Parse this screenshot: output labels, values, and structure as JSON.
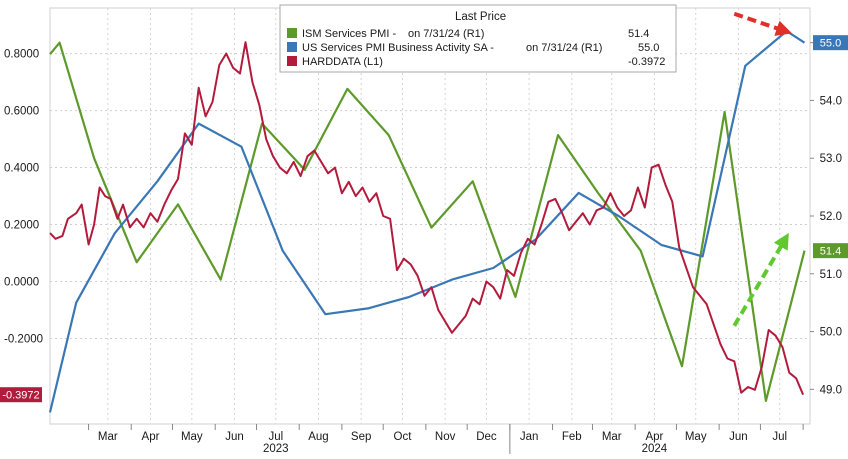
{
  "chart_data": {
    "type": "line",
    "legend": {
      "header": "Last Price",
      "placement": "top-center",
      "entries": [
        {
          "series": "ism",
          "label": "ISM Services PMI -",
          "date_note": "on 7/31/24 (R1)",
          "value": "51.4"
        },
        {
          "series": "us",
          "label": "US Services PMI Business Activity SA -",
          "date_note": "on 7/31/24 (R1)",
          "value": "55.0"
        },
        {
          "series": "hard",
          "label": "HARDDATA (L1)",
          "date_note": "",
          "value": "-0.3972"
        }
      ]
    },
    "x_axis": {
      "months": [
        "Mar",
        "Apr",
        "May",
        "Jun",
        "Jul",
        "Aug",
        "Sep",
        "Oct",
        "Nov",
        "Dec",
        "Jan",
        "Feb",
        "Mar",
        "Apr",
        "May",
        "Jun",
        "Jul"
      ],
      "month_dates": [
        "2023-03-15",
        "2023-04-15",
        "2023-05-15",
        "2023-06-15",
        "2023-07-15",
        "2023-08-15",
        "2023-09-15",
        "2023-10-15",
        "2023-11-15",
        "2023-12-15",
        "2024-01-15",
        "2024-02-15",
        "2024-03-15",
        "2024-04-15",
        "2024-05-15",
        "2024-06-15",
        "2024-07-15"
      ],
      "years": [
        {
          "label": "2023",
          "date": "2023-07-15"
        },
        {
          "label": "2024",
          "date": "2024-04-15"
        }
      ],
      "range": [
        "2023-02-01",
        "2024-08-06"
      ]
    },
    "y_left": {
      "ticks": [
        "0.8000",
        "0.6000",
        "0.4000",
        "0.2000",
        "0.0000",
        "-0.2000"
      ],
      "tick_values": [
        0.8,
        0.6,
        0.4,
        0.2,
        0.0,
        -0.2
      ],
      "range": [
        -0.5,
        0.96
      ]
    },
    "y_right": {
      "ticks": [
        "55.0",
        "54.0",
        "53.0",
        "52.0",
        "51.0",
        "50.0",
        "49.0"
      ],
      "tick_values": [
        55,
        54,
        53,
        52,
        51,
        50,
        49
      ],
      "range": [
        48.4,
        55.6
      ]
    },
    "grid": true,
    "last_value_labels": [
      {
        "series": "us",
        "text": "55.0",
        "value": 55.0,
        "color": "#3a77b6"
      },
      {
        "series": "ism",
        "text": "51.4",
        "value": 51.4,
        "color": "#5d9a2a"
      },
      {
        "series": "hard",
        "text": "-0.3972",
        "value": -0.3972,
        "color": "#b31b3d"
      }
    ],
    "annotations": [
      {
        "kind": "dashed-arrow",
        "color": "#e0302a",
        "from": {
          "x": "2024-06-12",
          "y": 55.5
        },
        "to": {
          "x": "2024-07-19",
          "y": 55.2
        }
      },
      {
        "kind": "dashed-arrow",
        "color": "#5fc92e",
        "from": {
          "x": "2024-06-12",
          "y": 50.1
        },
        "to": {
          "x": "2024-07-19",
          "y": 51.6
        }
      }
    ],
    "series": [
      {
        "id": "ism",
        "name": "ISM Services PMI",
        "axis": "right",
        "color": "#5d9a2a",
        "points": [
          [
            "2023-02-01",
            54.8
          ],
          [
            "2023-02-08",
            55.0
          ],
          [
            "2023-03-05",
            53.0
          ],
          [
            "2023-04-05",
            51.2
          ],
          [
            "2023-05-05",
            52.2
          ],
          [
            "2023-06-05",
            50.9
          ],
          [
            "2023-07-05",
            53.6
          ],
          [
            "2023-08-05",
            52.8
          ],
          [
            "2023-09-05",
            54.2
          ],
          [
            "2023-10-05",
            53.4
          ],
          [
            "2023-11-05",
            51.8
          ],
          [
            "2023-12-05",
            52.6
          ],
          [
            "2024-01-05",
            50.6
          ],
          [
            "2024-02-05",
            53.4
          ],
          [
            "2024-03-05",
            52.4
          ],
          [
            "2024-04-05",
            51.4
          ],
          [
            "2024-05-05",
            49.4
          ],
          [
            "2024-06-05",
            53.8
          ],
          [
            "2024-07-05",
            48.8
          ],
          [
            "2024-08-02",
            51.4
          ]
        ]
      },
      {
        "id": "us",
        "name": "US Services PMI Business Activity SA",
        "axis": "right",
        "color": "#3a77b6",
        "points": [
          [
            "2023-02-01",
            48.6
          ],
          [
            "2023-02-20",
            50.5
          ],
          [
            "2023-03-20",
            51.7
          ],
          [
            "2023-04-20",
            52.6
          ],
          [
            "2023-05-20",
            53.6
          ],
          [
            "2023-06-20",
            53.2
          ],
          [
            "2023-07-20",
            51.4
          ],
          [
            "2023-08-20",
            50.3
          ],
          [
            "2023-09-20",
            50.4
          ],
          [
            "2023-10-20",
            50.6
          ],
          [
            "2023-11-20",
            50.9
          ],
          [
            "2023-12-20",
            51.1
          ],
          [
            "2024-01-20",
            51.6
          ],
          [
            "2024-02-20",
            52.4
          ],
          [
            "2024-03-20",
            52.0
          ],
          [
            "2024-04-20",
            51.5
          ],
          [
            "2024-05-20",
            51.3
          ],
          [
            "2024-06-20",
            54.6
          ],
          [
            "2024-07-20",
            55.2
          ],
          [
            "2024-08-02",
            55.0
          ]
        ]
      },
      {
        "id": "hard",
        "name": "HARDDATA",
        "axis": "left",
        "color": "#b31b3d",
        "points": [
          [
            "2023-02-01",
            0.17
          ],
          [
            "2023-02-05",
            0.15
          ],
          [
            "2023-02-10",
            0.16
          ],
          [
            "2023-02-14",
            0.22
          ],
          [
            "2023-02-20",
            0.24
          ],
          [
            "2023-02-24",
            0.27
          ],
          [
            "2023-03-01",
            0.13
          ],
          [
            "2023-03-05",
            0.2
          ],
          [
            "2023-03-09",
            0.33
          ],
          [
            "2023-03-13",
            0.3
          ],
          [
            "2023-03-17",
            0.29
          ],
          [
            "2023-03-22",
            0.22
          ],
          [
            "2023-03-26",
            0.27
          ],
          [
            "2023-03-31",
            0.19
          ],
          [
            "2023-04-05",
            0.22
          ],
          [
            "2023-04-10",
            0.19
          ],
          [
            "2023-04-15",
            0.24
          ],
          [
            "2023-04-20",
            0.21
          ],
          [
            "2023-04-25",
            0.27
          ],
          [
            "2023-04-30",
            0.32
          ],
          [
            "2023-05-05",
            0.36
          ],
          [
            "2023-05-10",
            0.52
          ],
          [
            "2023-05-15",
            0.48
          ],
          [
            "2023-05-20",
            0.68
          ],
          [
            "2023-05-25",
            0.58
          ],
          [
            "2023-05-30",
            0.63
          ],
          [
            "2023-06-04",
            0.76
          ],
          [
            "2023-06-09",
            0.8
          ],
          [
            "2023-06-14",
            0.75
          ],
          [
            "2023-06-19",
            0.73
          ],
          [
            "2023-06-23",
            0.84
          ],
          [
            "2023-06-28",
            0.7
          ],
          [
            "2023-07-03",
            0.62
          ],
          [
            "2023-07-08",
            0.5
          ],
          [
            "2023-07-13",
            0.44
          ],
          [
            "2023-07-18",
            0.4
          ],
          [
            "2023-07-23",
            0.38
          ],
          [
            "2023-07-28",
            0.42
          ],
          [
            "2023-08-02",
            0.37
          ],
          [
            "2023-08-07",
            0.44
          ],
          [
            "2023-08-12",
            0.46
          ],
          [
            "2023-08-17",
            0.42
          ],
          [
            "2023-08-22",
            0.38
          ],
          [
            "2023-08-27",
            0.4
          ],
          [
            "2023-09-01",
            0.31
          ],
          [
            "2023-09-06",
            0.35
          ],
          [
            "2023-09-11",
            0.3
          ],
          [
            "2023-09-16",
            0.33
          ],
          [
            "2023-09-21",
            0.28
          ],
          [
            "2023-09-26",
            0.31
          ],
          [
            "2023-10-01",
            0.23
          ],
          [
            "2023-10-06",
            0.22
          ],
          [
            "2023-10-11",
            0.04
          ],
          [
            "2023-10-16",
            0.08
          ],
          [
            "2023-10-21",
            0.06
          ],
          [
            "2023-10-26",
            0.02
          ],
          [
            "2023-10-31",
            -0.05
          ],
          [
            "2023-11-05",
            -0.02
          ],
          [
            "2023-11-10",
            -0.1
          ],
          [
            "2023-11-15",
            -0.14
          ],
          [
            "2023-11-20",
            -0.18
          ],
          [
            "2023-11-25",
            -0.15
          ],
          [
            "2023-11-30",
            -0.12
          ],
          [
            "2023-12-05",
            -0.06
          ],
          [
            "2023-12-10",
            -0.08
          ],
          [
            "2023-12-15",
            0.0
          ],
          [
            "2023-12-20",
            -0.02
          ],
          [
            "2023-12-25",
            -0.06
          ],
          [
            "2023-12-30",
            0.04
          ],
          [
            "2024-01-04",
            0.02
          ],
          [
            "2024-01-09",
            0.1
          ],
          [
            "2024-01-14",
            0.15
          ],
          [
            "2024-01-19",
            0.13
          ],
          [
            "2024-01-24",
            0.2
          ],
          [
            "2024-01-29",
            0.28
          ],
          [
            "2024-02-03",
            0.29
          ],
          [
            "2024-02-08",
            0.24
          ],
          [
            "2024-02-13",
            0.18
          ],
          [
            "2024-02-18",
            0.21
          ],
          [
            "2024-02-23",
            0.24
          ],
          [
            "2024-02-28",
            0.2
          ],
          [
            "2024-03-04",
            0.25
          ],
          [
            "2024-03-09",
            0.26
          ],
          [
            "2024-03-14",
            0.31
          ],
          [
            "2024-03-19",
            0.26
          ],
          [
            "2024-03-24",
            0.23
          ],
          [
            "2024-03-29",
            0.25
          ],
          [
            "2024-04-03",
            0.33
          ],
          [
            "2024-04-08",
            0.26
          ],
          [
            "2024-04-13",
            0.4
          ],
          [
            "2024-04-18",
            0.41
          ],
          [
            "2024-04-23",
            0.34
          ],
          [
            "2024-04-28",
            0.28
          ],
          [
            "2024-05-03",
            0.12
          ],
          [
            "2024-05-08",
            0.05
          ],
          [
            "2024-05-13",
            -0.02
          ],
          [
            "2024-05-18",
            -0.05
          ],
          [
            "2024-05-23",
            -0.08
          ],
          [
            "2024-05-28",
            -0.15
          ],
          [
            "2024-06-02",
            -0.22
          ],
          [
            "2024-06-07",
            -0.27
          ],
          [
            "2024-06-12",
            -0.28
          ],
          [
            "2024-06-17",
            -0.39
          ],
          [
            "2024-06-22",
            -0.37
          ],
          [
            "2024-06-27",
            -0.38
          ],
          [
            "2024-07-02",
            -0.3
          ],
          [
            "2024-07-07",
            -0.17
          ],
          [
            "2024-07-12",
            -0.19
          ],
          [
            "2024-07-17",
            -0.23
          ],
          [
            "2024-07-22",
            -0.32
          ],
          [
            "2024-07-27",
            -0.34
          ],
          [
            "2024-08-01",
            -0.3972
          ]
        ]
      }
    ]
  }
}
